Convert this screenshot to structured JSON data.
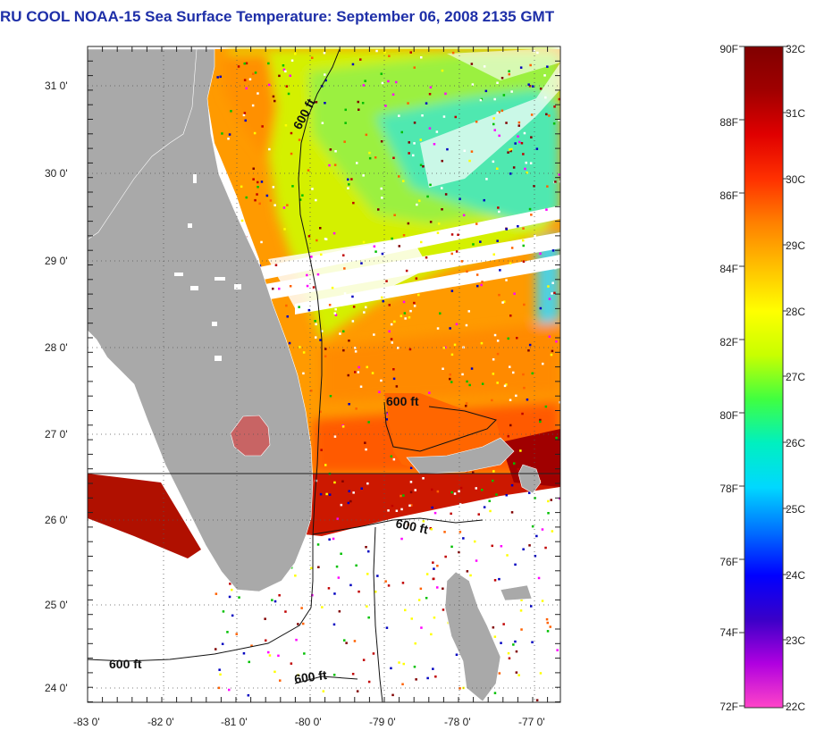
{
  "title": "RU COOL  NOAA-15  Sea Surface Temperature:  September 06, 2008 2135 GMT",
  "map": {
    "lat_labels": [
      "31 0'",
      "30 0'",
      "29 0'",
      "28 0'",
      "27 0'",
      "26 0'",
      "25 0'",
      "24 0'"
    ],
    "lon_labels": [
      "-83 0'",
      "-82 0'",
      "-81 0'",
      "-80 0'",
      "-79 0'",
      "-78 0'",
      "-77 0'"
    ],
    "isobath_labels": [
      "600 ft",
      "600 ft",
      "600 ft",
      "600 ft",
      "600 ft"
    ],
    "colors": {
      "land": "#a9a9a9",
      "cloud": "#ffffff",
      "grid": "#555555"
    }
  },
  "colorbar": {
    "f_labels": [
      "90F",
      "88F",
      "86F",
      "84F",
      "82F",
      "80F",
      "78F",
      "76F",
      "74F",
      "72F"
    ],
    "c_labels": [
      "32C",
      "31C",
      "30C",
      "29C",
      "28C",
      "27C",
      "26C",
      "25C",
      "24C",
      "23C",
      "22C"
    ],
    "colors": [
      "#ff44c8",
      "#b000e0",
      "#3a00c8",
      "#0000ff",
      "#0070ff",
      "#00d8ff",
      "#00f0c0",
      "#40ff40",
      "#c8ff00",
      "#ffff00",
      "#ffc000",
      "#ff8000",
      "#ff3000",
      "#e00000",
      "#a00000",
      "#800000"
    ]
  }
}
